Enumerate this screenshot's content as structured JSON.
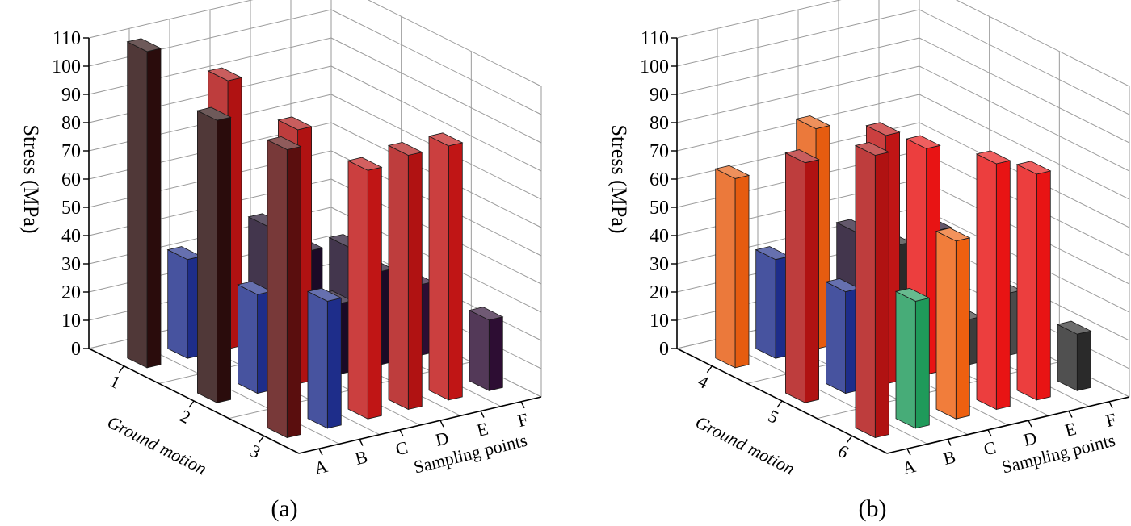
{
  "figure": {
    "captions": [
      "(a)",
      "(b)"
    ]
  },
  "chart_data": [
    {
      "type": "bar3d",
      "subfigure": "(a)",
      "ylabel": "Stress (MPa)",
      "x_axis_label": "Sampling points",
      "z_axis_label": "Ground motion",
      "ylim": [
        0,
        110
      ],
      "yticks": [
        "0",
        "10",
        "20",
        "30",
        "40",
        "50",
        "60",
        "70",
        "80",
        "90",
        "100",
        "110"
      ],
      "x_categories": [
        "A",
        "B",
        "C",
        "D",
        "E",
        "F"
      ],
      "z_categories": [
        "1",
        "2",
        "3"
      ],
      "grid": true,
      "bars": [
        {
          "motion": "1",
          "point": "A",
          "value": 112,
          "color": "#2a0c0c"
        },
        {
          "motion": "1",
          "point": "B",
          "value": 35,
          "color": "#1e2d8a"
        },
        {
          "motion": "1",
          "point": "C",
          "value": 95,
          "color": "#b01212"
        },
        {
          "motion": "1",
          "point": "D",
          "value": 40,
          "color": "#1a0a26"
        },
        {
          "motion": "1",
          "point": "E",
          "value": 28,
          "color": "#1a0a26"
        },
        {
          "motion": "1",
          "point": "F",
          "value": 26,
          "color": "#1a0a26"
        },
        {
          "motion": "2",
          "point": "A",
          "value": 100,
          "color": "#2a0c0c"
        },
        {
          "motion": "2",
          "point": "B",
          "value": 35,
          "color": "#1e2d8a"
        },
        {
          "motion": "2",
          "point": "C",
          "value": 90,
          "color": "#b01212"
        },
        {
          "motion": "2",
          "point": "D",
          "value": 25,
          "color": "#1a0a26"
        },
        {
          "motion": "2",
          "point": "E",
          "value": 33,
          "color": "#1a0a26"
        },
        {
          "motion": "2",
          "point": "F",
          "value": 25,
          "color": "#2d0d33"
        },
        {
          "motion": "3",
          "point": "A",
          "value": 102,
          "color": "#5a0e0e"
        },
        {
          "motion": "3",
          "point": "B",
          "value": 45,
          "color": "#1e2d8a"
        },
        {
          "motion": "3",
          "point": "C",
          "value": 88,
          "color": "#c01515"
        },
        {
          "motion": "3",
          "point": "D",
          "value": 90,
          "color": "#b01212"
        },
        {
          "motion": "3",
          "point": "E",
          "value": 90,
          "color": "#c01515"
        },
        {
          "motion": "3",
          "point": "F",
          "value": 25,
          "color": "#2d0d33"
        }
      ]
    },
    {
      "type": "bar3d",
      "subfigure": "(b)",
      "ylabel": "Stress (MPa)",
      "x_axis_label": "Sampling points",
      "z_axis_label": "Ground motion",
      "ylim": [
        0,
        110
      ],
      "yticks": [
        "0",
        "10",
        "20",
        "30",
        "40",
        "50",
        "60",
        "70",
        "80",
        "90",
        "100",
        "110"
      ],
      "x_categories": [
        "A",
        "B",
        "C",
        "D",
        "E",
        "F"
      ],
      "z_categories": [
        "4",
        "5",
        "6"
      ],
      "grid": true,
      "bars": [
        {
          "motion": "4",
          "point": "A",
          "value": 67,
          "color": "#e65c10"
        },
        {
          "motion": "4",
          "point": "B",
          "value": 35,
          "color": "#1e2d8a"
        },
        {
          "motion": "4",
          "point": "C",
          "value": 78,
          "color": "#e65c10"
        },
        {
          "motion": "4",
          "point": "D",
          "value": 38,
          "color": "#1a0a26"
        },
        {
          "motion": "4",
          "point": "E",
          "value": 30,
          "color": "#2a2a2a"
        },
        {
          "motion": "4",
          "point": "F",
          "value": 32,
          "color": "#1a0a26"
        },
        {
          "motion": "5",
          "point": "A",
          "value": 85,
          "color": "#b01212"
        },
        {
          "motion": "5",
          "point": "B",
          "value": 36,
          "color": "#1e2d8a"
        },
        {
          "motion": "5",
          "point": "C",
          "value": 88,
          "color": "#c01515"
        },
        {
          "motion": "5",
          "point": "D",
          "value": 80,
          "color": "#e81414"
        },
        {
          "motion": "5",
          "point": "E",
          "value": 16,
          "color": "#3c3c3c"
        },
        {
          "motion": "5",
          "point": "F",
          "value": 22,
          "color": "#4a4a4a"
        },
        {
          "motion": "6",
          "point": "A",
          "value": 100,
          "color": "#b01212"
        },
        {
          "motion": "6",
          "point": "B",
          "value": 45,
          "color": "#1f9a5a"
        },
        {
          "motion": "6",
          "point": "C",
          "value": 63,
          "color": "#ee6010"
        },
        {
          "motion": "6",
          "point": "D",
          "value": 87,
          "color": "#e81414"
        },
        {
          "motion": "6",
          "point": "E",
          "value": 80,
          "color": "#e81414"
        },
        {
          "motion": "6",
          "point": "F",
          "value": 20,
          "color": "#2a2a2a"
        }
      ]
    }
  ]
}
